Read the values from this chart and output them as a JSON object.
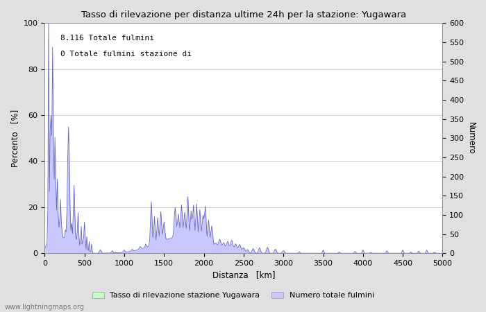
{
  "title": "Tasso di rilevazione per distanza ultime 24h per la stazione: Yugawara",
  "xlabel": "Distanza   [km]",
  "ylabel_left": "Percento   [%]",
  "ylabel_right": "Numero",
  "annotation_line1": "8.116 Totale fulmini",
  "annotation_line2": "0 Totale fulmini stazione di",
  "xlim": [
    0,
    5000
  ],
  "ylim_left": [
    0,
    100
  ],
  "ylim_right": [
    0,
    600
  ],
  "xticks": [
    0,
    500,
    1000,
    1500,
    2000,
    2500,
    3000,
    3500,
    4000,
    4500,
    5000
  ],
  "yticks_left": [
    0,
    20,
    40,
    60,
    80,
    100
  ],
  "yticks_right": [
    0,
    50,
    100,
    150,
    200,
    250,
    300,
    350,
    400,
    450,
    500,
    550,
    600
  ],
  "legend_label_green": "Tasso di rilevazione stazione Yugawara",
  "legend_label_blue": "Numero totale fulmini",
  "watermark": "www.lightningmaps.org",
  "fill_color": "#c8c8ff",
  "fill_color_green": "#c8ffc8",
  "line_color": "#6666bb",
  "background_color": "#ffffff",
  "grid_color": "#bbbbbb",
  "fig_bg_color": "#e0e0e0"
}
